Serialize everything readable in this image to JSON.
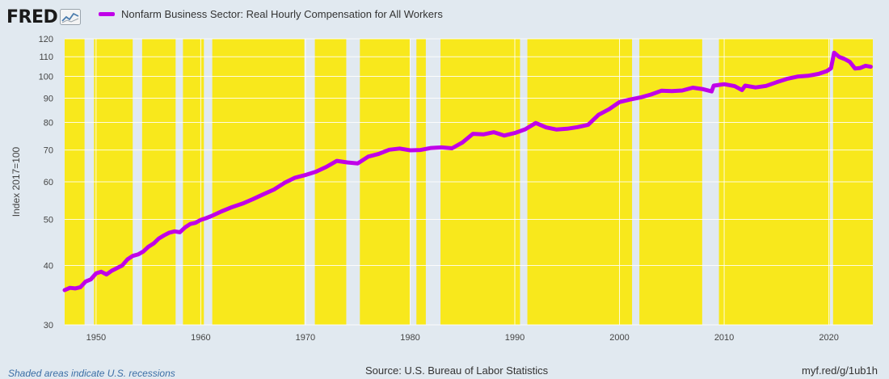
{
  "brand": {
    "logo_text": "FRED",
    "logo_icon": "line-graph-icon"
  },
  "legend": {
    "label": "Nonfarm Business Sector: Real Hourly Compensation for All Workers",
    "color": "#c000e8"
  },
  "footer": {
    "note": "Shaded areas indicate U.S. recessions",
    "source": "Source: U.S. Bureau of Labor Statistics",
    "link": "myf.red/g/1ub1h"
  },
  "colors": {
    "background": "#e1e9f0",
    "plot_fill": "#f8e81c",
    "recession_fill": "#e1e9f0",
    "line": "#c000e8"
  },
  "chart_data": {
    "type": "line",
    "title": "Nonfarm Business Sector: Real Hourly Compensation for All Workers",
    "xlabel": "",
    "ylabel": "Index 2017=100",
    "yscale": "log",
    "xlim": [
      1947.0,
      2024.2
    ],
    "ylim": [
      30,
      120
    ],
    "x_ticks": [
      1950,
      1960,
      1970,
      1980,
      1990,
      2000,
      2010,
      2020
    ],
    "y_ticks": [
      30,
      40,
      50,
      60,
      70,
      80,
      90,
      100,
      110,
      120
    ],
    "grid": true,
    "legend_position": "top",
    "recessions": [
      [
        1948.9,
        1949.8
      ],
      [
        1953.5,
        1954.4
      ],
      [
        1957.6,
        1958.3
      ],
      [
        1960.3,
        1961.1
      ],
      [
        1969.9,
        1970.9
      ],
      [
        1973.9,
        1975.2
      ],
      [
        1980.0,
        1980.6
      ],
      [
        1981.5,
        1982.9
      ],
      [
        1990.5,
        1991.2
      ],
      [
        2001.2,
        2001.9
      ],
      [
        2007.9,
        2009.5
      ],
      [
        2020.1,
        2020.4
      ]
    ],
    "series": [
      {
        "name": "Nonfarm Business Sector: Real Hourly Compensation for All Workers",
        "x": [
          1947.0,
          1947.5,
          1948.0,
          1948.5,
          1949.0,
          1949.5,
          1950.0,
          1950.5,
          1951.0,
          1951.5,
          1952.0,
          1952.5,
          1953.0,
          1953.5,
          1954.0,
          1954.5,
          1955.0,
          1955.5,
          1956.0,
          1956.5,
          1957.0,
          1957.5,
          1958.0,
          1958.5,
          1959.0,
          1959.5,
          1960.0,
          1960.5,
          1961.0,
          1962.0,
          1963.0,
          1964.0,
          1965.0,
          1966.0,
          1967.0,
          1968.0,
          1969.0,
          1970.0,
          1971.0,
          1972.0,
          1973.0,
          1974.0,
          1975.0,
          1976.0,
          1977.0,
          1978.0,
          1979.0,
          1980.0,
          1981.0,
          1982.0,
          1983.0,
          1984.0,
          1985.0,
          1986.0,
          1987.0,
          1988.0,
          1989.0,
          1990.0,
          1991.0,
          1992.0,
          1993.0,
          1994.0,
          1995.0,
          1996.0,
          1997.0,
          1998.0,
          1999.0,
          2000.0,
          2001.0,
          2002.0,
          2003.0,
          2004.0,
          2005.0,
          2006.0,
          2007.0,
          2008.0,
          2008.8,
          2009.0,
          2010.0,
          2011.0,
          2011.7,
          2012.0,
          2013.0,
          2014.0,
          2015.0,
          2016.0,
          2017.0,
          2018.0,
          2019.0,
          2019.8,
          2020.2,
          2020.5,
          2021.0,
          2021.5,
          2022.0,
          2022.5,
          2023.0,
          2023.5,
          2024.0
        ],
        "values": [
          35.5,
          35.9,
          35.8,
          36.0,
          37.0,
          37.4,
          38.5,
          38.8,
          38.3,
          39.0,
          39.5,
          40.0,
          41.2,
          41.9,
          42.2,
          42.8,
          43.8,
          44.5,
          45.6,
          46.3,
          46.9,
          47.2,
          47.0,
          48.1,
          48.9,
          49.2,
          49.9,
          50.3,
          50.8,
          52.0,
          53.1,
          54.0,
          55.2,
          56.5,
          57.8,
          59.7,
          61.2,
          62.0,
          63.0,
          64.5,
          66.4,
          65.9,
          65.6,
          67.8,
          68.7,
          70.1,
          70.5,
          69.9,
          70.0,
          70.7,
          70.9,
          70.6,
          72.6,
          75.7,
          75.5,
          76.3,
          75.1,
          76.0,
          77.4,
          79.8,
          78.1,
          77.3,
          77.6,
          78.2,
          79.1,
          83.0,
          85.3,
          88.3,
          89.4,
          90.3,
          91.6,
          93.3,
          93.1,
          93.4,
          94.7,
          94.0,
          93.0,
          95.6,
          96.3,
          95.4,
          93.6,
          95.6,
          94.8,
          95.5,
          97.2,
          98.8,
          99.9,
          100.3,
          101.2,
          102.6,
          104.0,
          112.2,
          109.9,
          108.8,
          107.3,
          103.9,
          104.2,
          105.3,
          104.8
        ]
      }
    ]
  }
}
